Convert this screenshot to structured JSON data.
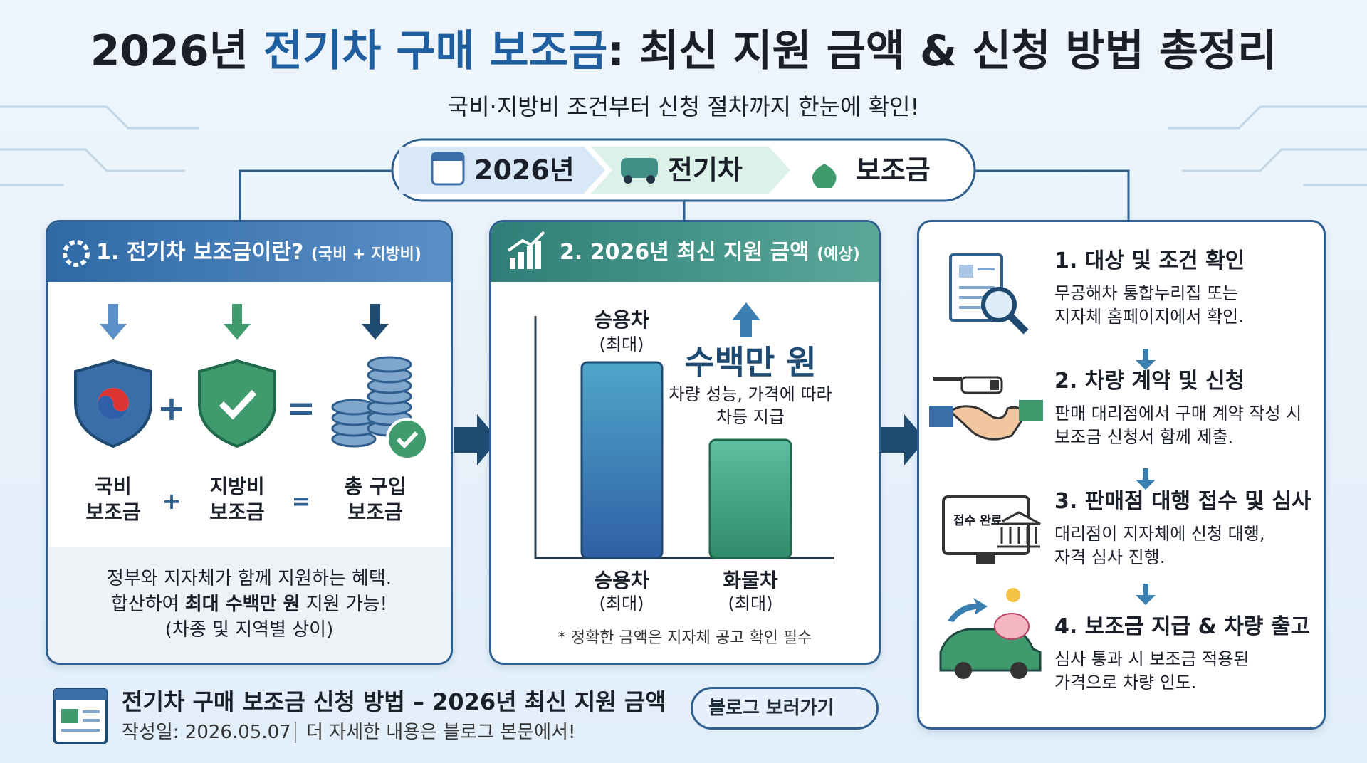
{
  "header": {
    "title": [
      "2026년 ",
      "전기차 구매 보조금",
      ": 최신 지원 금액 & 신청 방법 총정리"
    ],
    "subtitle": "국비·지방비 조건부터 신청 절차까지 한눈에 확인!"
  },
  "pills": [
    "2026년",
    "전기차",
    "보조금"
  ],
  "panel1": {
    "title": "1. 전기차 보조금이란?",
    "title_note": "(국비 + 지방비)",
    "items": [
      [
        "국비",
        "보조금"
      ],
      [
        "지방비",
        "보조금"
      ],
      [
        "총 구입",
        "보조금"
      ]
    ],
    "operators": [
      "+",
      "="
    ],
    "description": {
      "line1": "정부와 지자체가 함께 지원하는 혜택.",
      "line2": [
        "합산하여 ",
        "최대 수백만 원",
        " 지원 가능!"
      ],
      "line3": "(차종 및 지역별 상이)"
    }
  },
  "panel2": {
    "title": "2. 2026년 최신 지원 금액",
    "title_note": "(예상)",
    "bars": [
      {
        "label": "승용차",
        "sub": "(최대)"
      },
      {
        "label": "화물차",
        "sub": "(최대)"
      }
    ],
    "callout": "수백만 원",
    "callout_desc": [
      "차량 성능, 가격에 따라",
      "차등 지급"
    ],
    "footnote": "* 정확한 금액은 지자체 공고 확인 필수"
  },
  "panel3": {
    "steps": [
      {
        "title": "1. 대상 및 조건 확인",
        "lines": [
          "무공해차 통합누리집 또는",
          "지자체 홈페이지에서 확인."
        ]
      },
      {
        "title": "2. 차량 계약 및 신청",
        "lines": [
          "판매 대리점에서 구매 계약 작성 시",
          "보조금 신청서 함께 제출."
        ]
      },
      {
        "title": "3. 판매점 대행 접수 및 심사",
        "lines": [
          "대리점이 지자체에 신청 대행,",
          "자격 심사 진행."
        ]
      },
      {
        "title": "4. 보조금 지급 & 차량 출고",
        "lines": [
          "심사 통과 시 보조금 적용된",
          "가격으로 차량 인도."
        ]
      }
    ],
    "icon_label": "접수 완료"
  },
  "footer": {
    "title": "전기차 구매 보조금 신청 방법 – 2026년 최신 지원 금액",
    "date": "작성일: 2026.05.07",
    "note": "더 자세한 내용은 블로그 본문에서!",
    "button": "블로그 보러가기"
  }
}
